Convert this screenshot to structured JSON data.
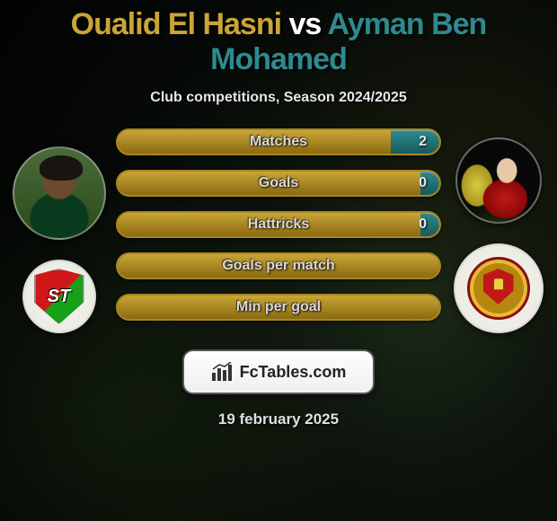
{
  "title": {
    "player1": "Oualid El Hasni",
    "vs": "vs",
    "player2": "Ayman Ben Mohamed",
    "player1_color": "#c9a538",
    "vs_color": "#ffffff",
    "player2_color": "#2d8a8f"
  },
  "subtitle": "Club competitions, Season 2024/2025",
  "bars": {
    "accent_gold": "#c9a538",
    "accent_teal": "#2d8a8f",
    "border_gold": "#a8861f",
    "items": [
      {
        "label": "Matches",
        "left": "",
        "right": "2",
        "right_fill_pct": 15
      },
      {
        "label": "Goals",
        "left": "",
        "right": "0",
        "right_fill_pct": 6
      },
      {
        "label": "Hattricks",
        "left": "",
        "right": "0",
        "right_fill_pct": 6
      },
      {
        "label": "Goals per match",
        "left": "",
        "right": "",
        "right_fill_pct": 0
      },
      {
        "label": "Min per goal",
        "left": "",
        "right": "",
        "right_fill_pct": 0
      }
    ]
  },
  "branding": {
    "name": "FcTables.com"
  },
  "date": "19 february 2025"
}
